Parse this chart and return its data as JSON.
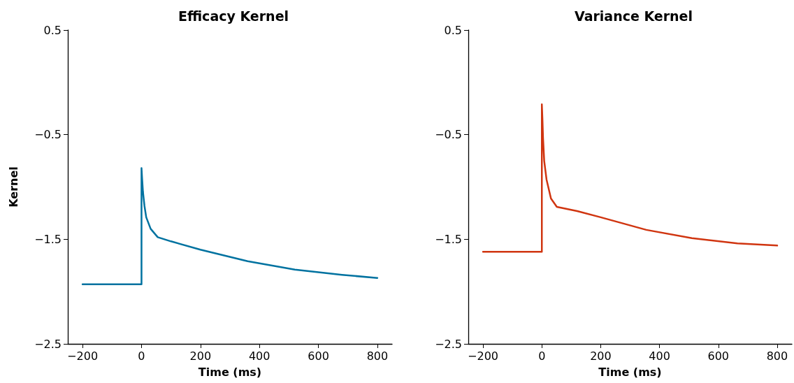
{
  "chart_data": [
    {
      "type": "line",
      "title": "Efficacy Kernel",
      "xlabel": "Time (ms)",
      "ylabel": "Kernel",
      "series": [
        {
          "color": "#0072a0",
          "x": [
            -200,
            0,
            0,
            2,
            5,
            10,
            16,
            31,
            55,
            100,
            200,
            360,
            520,
            680,
            800
          ],
          "values": [
            -1.93,
            -1.93,
            -0.82,
            -0.92,
            -1.05,
            -1.18,
            -1.29,
            -1.4,
            -1.48,
            -1.52,
            -1.6,
            -1.71,
            -1.79,
            -1.84,
            -1.87
          ]
        }
      ],
      "xlim": [
        -250,
        850
      ],
      "xticks": [
        {
          "value": -200,
          "label": "−200"
        },
        0,
        200,
        400,
        600,
        800
      ],
      "ylim": [
        -2.5,
        0.5
      ],
      "yticks": [
        {
          "value": -2.5,
          "label": "−2.5"
        },
        {
          "value": -1.5,
          "label": "−1.5"
        },
        {
          "value": -0.5,
          "label": "−0.5"
        },
        0.5
      ],
      "grid": false,
      "marker": "none",
      "line_style": "solid"
    },
    {
      "type": "line",
      "title": "Variance Kernel",
      "xlabel": "Time (ms)",
      "series": [
        {
          "color": "#d03510",
          "x": [
            -200,
            0,
            0,
            2,
            4,
            8,
            16,
            31,
            51,
            120,
            200,
            355,
            510,
            665,
            800
          ],
          "values": [
            -1.62,
            -1.62,
            -0.21,
            -0.35,
            -0.53,
            -0.75,
            -0.93,
            -1.11,
            -1.19,
            -1.23,
            -1.29,
            -1.41,
            -1.49,
            -1.54,
            -1.56
          ]
        }
      ],
      "xlim": [
        -250,
        850
      ],
      "xticks": [
        {
          "value": -200,
          "label": "−200"
        },
        0,
        200,
        400,
        600,
        800
      ],
      "ylim": [
        -2.5,
        0.5
      ],
      "yticks": [
        {
          "value": -2.5,
          "label": "−2.5"
        },
        {
          "value": -1.5,
          "label": "−1.5"
        },
        {
          "value": -0.5,
          "label": "−0.5"
        },
        0.5
      ],
      "grid": false,
      "marker": "none",
      "line_style": "solid"
    }
  ]
}
